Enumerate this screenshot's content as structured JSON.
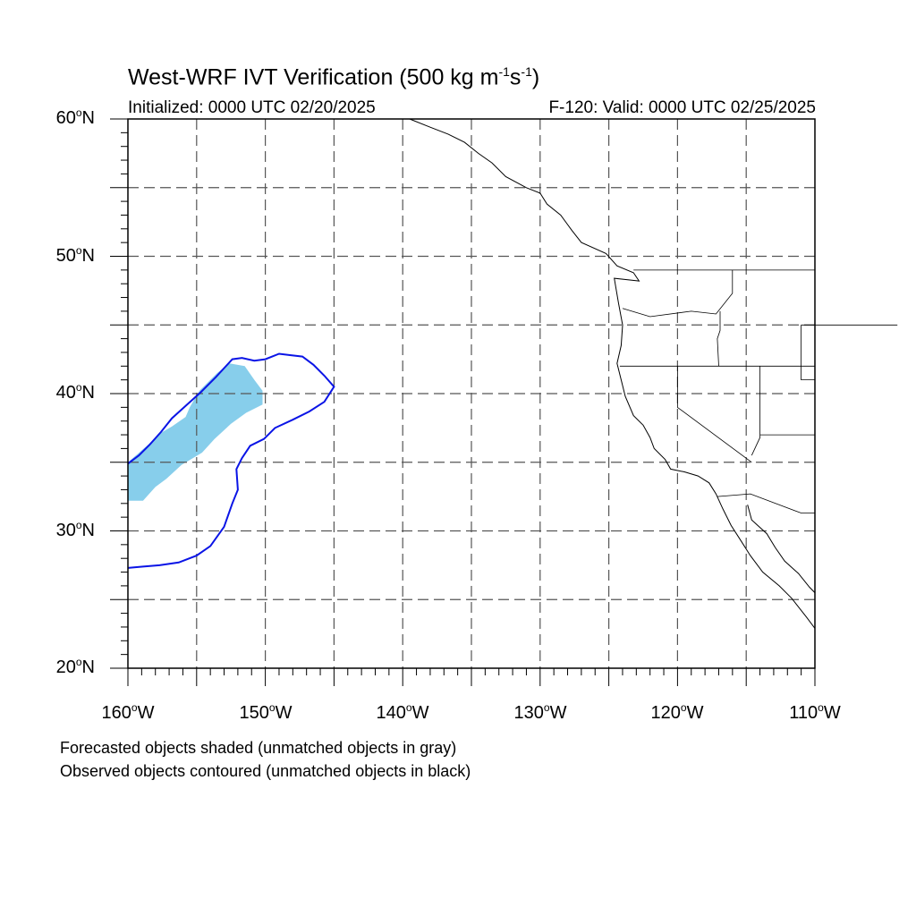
{
  "title": {
    "prefix": "West-WRF IVT Verification (500 kg m",
    "exp1": "-1",
    "mid": "s",
    "exp2": "-1",
    "suffix": ")"
  },
  "subtitle_left": "Initialized: 0000 UTC 02/20/2025",
  "subtitle_right": "F-120: Valid: 0000 UTC 02/25/2025",
  "lat_labels": [
    {
      "value": "60",
      "suffix": "N"
    },
    {
      "value": "50",
      "suffix": "N"
    },
    {
      "value": "40",
      "suffix": "N"
    },
    {
      "value": "30",
      "suffix": "N"
    },
    {
      "value": "20",
      "suffix": "N"
    }
  ],
  "lon_labels": [
    {
      "value": "160",
      "suffix": "W"
    },
    {
      "value": "150",
      "suffix": "W"
    },
    {
      "value": "140",
      "suffix": "W"
    },
    {
      "value": "130",
      "suffix": "W"
    },
    {
      "value": "120",
      "suffix": "W"
    },
    {
      "value": "110",
      "suffix": "W"
    }
  ],
  "notes": {
    "forecast": "Forecasted objects shaded (unmatched objects in gray)",
    "observed": "Observed objects contoured (unmatched objects in black)"
  },
  "map": {
    "lon_range": [
      -160,
      -110
    ],
    "lat_range": [
      20,
      60
    ],
    "gridlines": "dashed every 5 degrees",
    "forecast_object_color": "#87ceeb",
    "observed_contour_color": "#0a14e6",
    "coastline_color": "#000000",
    "forecast_object_lonlat": [
      [
        -160,
        35
      ],
      [
        -159.3,
        35.6
      ],
      [
        -158.5,
        36.3
      ],
      [
        -157.5,
        37.2
      ],
      [
        -156.8,
        37.6
      ],
      [
        -155.8,
        38.3
      ],
      [
        -155.5,
        39
      ],
      [
        -154.8,
        40.2
      ],
      [
        -153.5,
        41.5
      ],
      [
        -152.6,
        42.2
      ],
      [
        -151.5,
        42
      ],
      [
        -150.8,
        41
      ],
      [
        -150.2,
        40.2
      ],
      [
        -150.2,
        39.2
      ],
      [
        -151.4,
        38.6
      ],
      [
        -152.5,
        37.8
      ],
      [
        -153.7,
        36.7
      ],
      [
        -154.6,
        35.7
      ],
      [
        -156.1,
        34.8
      ],
      [
        -157.2,
        33.8
      ],
      [
        -158,
        33.2
      ],
      [
        -158.9,
        32.2
      ],
      [
        -160,
        32.2
      ]
    ],
    "observed_contour_lonlat": [
      [
        -160,
        27.3
      ],
      [
        -158.9,
        27.4
      ],
      [
        -157.7,
        27.5
      ],
      [
        -156.3,
        27.7
      ],
      [
        -155,
        28.2
      ],
      [
        -154,
        28.9
      ],
      [
        -153,
        30.3
      ],
      [
        -152.4,
        32
      ],
      [
        -152,
        33
      ],
      [
        -152.1,
        34.5
      ],
      [
        -151.7,
        35.3
      ],
      [
        -151.1,
        36.2
      ],
      [
        -150.1,
        36.7
      ],
      [
        -149.3,
        37.5
      ],
      [
        -148,
        38.1
      ],
      [
        -146.8,
        38.7
      ],
      [
        -145.7,
        39.4
      ],
      [
        -145,
        40.5
      ],
      [
        -145.7,
        41.3
      ],
      [
        -146.5,
        42.1
      ],
      [
        -147.3,
        42.7
      ],
      [
        -148.2,
        42.8
      ],
      [
        -149,
        42.9
      ],
      [
        -150,
        42.5
      ],
      [
        -150.8,
        42.4
      ],
      [
        -151.7,
        42.6
      ],
      [
        -152.4,
        42.5
      ],
      [
        -153.6,
        41.2
      ],
      [
        -154.7,
        40.1
      ],
      [
        -155.8,
        39.1
      ],
      [
        -156.8,
        38.2
      ],
      [
        -157.6,
        37.2
      ],
      [
        -158.4,
        36.3
      ],
      [
        -159.2,
        35.5
      ],
      [
        -160,
        34.9
      ]
    ],
    "coastline_lonlat": [
      [
        -139.5,
        60
      ],
      [
        -138,
        59.4
      ],
      [
        -136.7,
        58.9
      ],
      [
        -135.5,
        58.3
      ],
      [
        -134.5,
        57.5
      ],
      [
        -133.5,
        56.8
      ],
      [
        -132.5,
        55.8
      ],
      [
        -131,
        55
      ],
      [
        -130,
        54.6
      ],
      [
        -129.5,
        53.8
      ],
      [
        -128.5,
        53
      ],
      [
        -127.7,
        51.9
      ],
      [
        -127,
        51
      ],
      [
        -125.2,
        50.2
      ],
      [
        -124.4,
        49.3
      ],
      [
        -123.2,
        48.8
      ],
      [
        -122.8,
        48.2
      ],
      [
        -124.6,
        48.4
      ],
      [
        -124.3,
        46.6
      ],
      [
        -124,
        45
      ],
      [
        -124.1,
        43.5
      ],
      [
        -124.4,
        42.2
      ],
      [
        -124.1,
        41
      ],
      [
        -123.8,
        39.8
      ],
      [
        -123.2,
        38.4
      ],
      [
        -122.5,
        37.7
      ],
      [
        -122,
        36.8
      ],
      [
        -121.7,
        36
      ],
      [
        -120.9,
        35.2
      ],
      [
        -120.5,
        34.5
      ],
      [
        -119.5,
        34.3
      ],
      [
        -118.5,
        34
      ],
      [
        -117.7,
        33.5
      ],
      [
        -117.2,
        32.7
      ],
      [
        -116.7,
        31.6
      ],
      [
        -116.1,
        30.4
      ],
      [
        -115.4,
        29.3
      ],
      [
        -114.7,
        28.2
      ],
      [
        -113.8,
        27
      ],
      [
        -112.6,
        26
      ],
      [
        -111.7,
        25.1
      ],
      [
        -110.6,
        23.7
      ],
      [
        -110,
        22.9
      ]
    ],
    "gulf_coast_lonlat": [
      [
        -114.9,
        31.9
      ],
      [
        -114.6,
        30.8
      ],
      [
        -113.5,
        29.8
      ],
      [
        -112.9,
        28.8
      ],
      [
        -112.2,
        27.8
      ],
      [
        -111.2,
        26.9
      ],
      [
        -110.4,
        25.9
      ],
      [
        -110,
        25.5
      ]
    ],
    "borders_lonlat": [
      [
        [
          -123.2,
          49
        ],
        [
          -110,
          49
        ]
      ],
      [
        [
          -124.2,
          42
        ],
        [
          -110,
          42
        ]
      ],
      [
        [
          -120,
          42
        ],
        [
          -120,
          39
        ],
        [
          -114.6,
          35
        ]
      ],
      [
        [
          -117.1,
          32.5
        ],
        [
          -114.7,
          32.7
        ],
        [
          -111,
          31.3
        ],
        [
          -110,
          31.3
        ]
      ],
      [
        [
          -116.9,
          46
        ],
        [
          -116.9,
          44.6
        ],
        [
          -117.1,
          44
        ],
        [
          -117,
          42
        ]
      ],
      [
        [
          -116,
          49
        ],
        [
          -116,
          47.3
        ],
        [
          -117.2,
          45.8
        ],
        [
          -119,
          46
        ],
        [
          -122,
          45.6
        ],
        [
          -124,
          46.2
        ]
      ],
      [
        [
          -114,
          42
        ],
        [
          -114,
          36.8
        ],
        [
          -114.6,
          35.5
        ]
      ],
      [
        [
          -111,
          45
        ],
        [
          -104,
          45
        ]
      ],
      [
        [
          -111,
          45
        ],
        [
          -111,
          41
        ],
        [
          -110,
          41
        ]
      ],
      [
        [
          -114,
          37
        ],
        [
          -110,
          37
        ]
      ]
    ]
  }
}
